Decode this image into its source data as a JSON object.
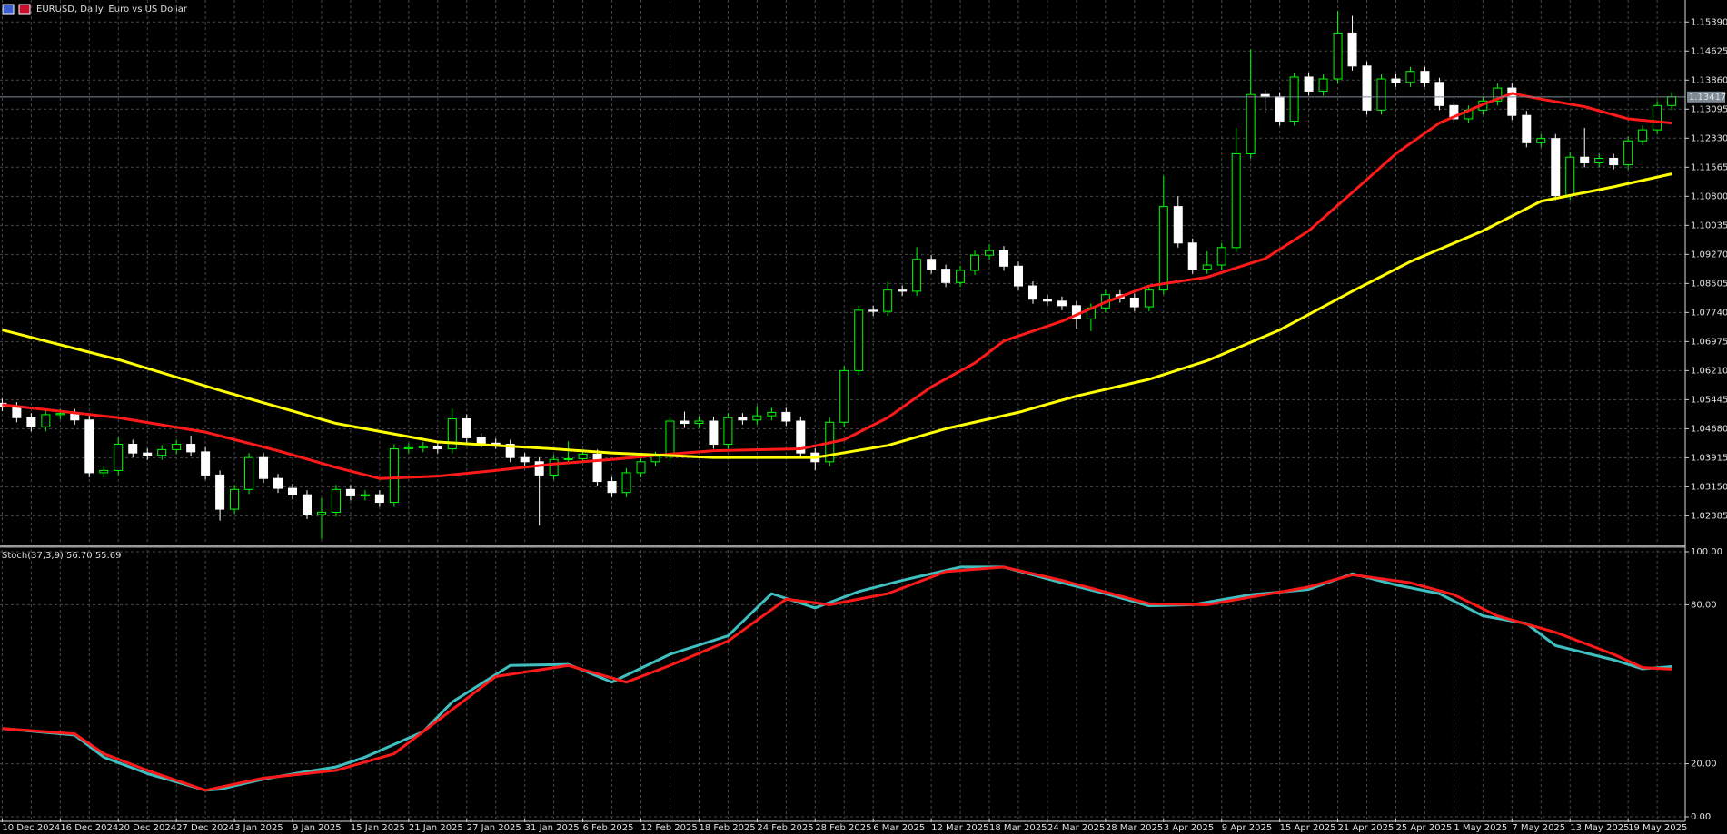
{
  "chart_data": [
    {
      "type": "candlestick",
      "title": "EURUSD, Daily: Euro vs US Dollar",
      "categories": [
        "10 Dec 2024",
        null,
        null,
        null,
        "16 Dec 2024",
        null,
        null,
        null,
        "20 Dec 2024",
        null,
        null,
        null,
        "27 Dec 2024",
        null,
        null,
        null,
        "3 Jan 2025",
        null,
        null,
        null,
        "9 Jan 2025",
        null,
        null,
        null,
        "15 Jan 2025",
        null,
        null,
        null,
        "21 Jan 2025",
        null,
        null,
        null,
        "27 Jan 2025",
        null,
        null,
        null,
        "31 Jan 2025",
        null,
        null,
        null,
        "6 Feb 2025",
        null,
        null,
        null,
        "12 Feb 2025",
        null,
        null,
        null,
        "18 Feb 2025",
        null,
        null,
        null,
        "24 Feb 2025",
        null,
        null,
        null,
        "28 Feb 2025",
        null,
        null,
        null,
        "6 Mar 2025",
        null,
        null,
        null,
        "12 Mar 2025",
        null,
        null,
        null,
        "18 Mar 2025",
        null,
        null,
        null,
        "24 Mar 2025",
        null,
        null,
        null,
        "28 Mar 2025",
        null,
        null,
        null,
        "3 Apr 2025",
        null,
        null,
        null,
        "9 Apr 2025",
        null,
        null,
        null,
        "15 Apr 2025",
        null,
        null,
        null,
        "21 Apr 2025",
        null,
        null,
        null,
        "25 Apr 2025",
        null,
        null,
        null,
        "1 May 2025",
        null,
        null,
        null,
        "7 May 2025",
        null,
        null,
        null,
        "13 May 2025",
        null,
        null,
        null,
        "19 May 2025",
        null,
        null,
        null
      ],
      "open": [
        1.0535,
        1.0526,
        1.0497,
        1.0473,
        1.0505,
        1.0508,
        1.0491,
        1.0352,
        1.0358,
        1.0427,
        1.0404,
        1.0398,
        1.0413,
        1.0427,
        1.0407,
        1.0346,
        1.0256,
        1.0308,
        1.0392,
        1.0337,
        1.0311,
        1.0294,
        1.0242,
        1.0248,
        1.0308,
        1.0291,
        1.0294,
        1.0274,
        1.0415,
        1.0418,
        1.0421,
        1.0415,
        1.0494,
        1.0444,
        1.043,
        1.0427,
        1.0392,
        1.0381,
        1.0346,
        1.0387,
        1.0389,
        1.0401,
        1.0329,
        1.03,
        1.0352,
        1.0381,
        1.0395,
        1.0488,
        1.0482,
        1.0488,
        1.0427,
        1.0497,
        1.0491,
        1.0502,
        1.0511,
        1.0488,
        1.0404,
        1.0381,
        1.0485,
        1.0621,
        1.078,
        1.0777,
        1.0833,
        1.083,
        1.0914,
        1.0888,
        1.0853,
        1.0885,
        1.0925,
        1.0937,
        1.0896,
        1.0844,
        1.0809,
        1.0804,
        1.0792,
        1.0757,
        1.0786,
        1.0821,
        1.0812,
        1.0789,
        1.0833,
        1.1053,
        1.0957,
        1.0888,
        1.0899,
        1.0945,
        1.1192,
        1.1348,
        1.1342,
        1.1278,
        1.1394,
        1.1357,
        1.1389,
        1.151,
        1.1423,
        1.1307,
        1.1389,
        1.138,
        1.1409,
        1.138,
        1.1319,
        1.1284,
        1.1307,
        1.1331,
        1.1365,
        1.1293,
        1.1221,
        1.1232,
        1.1082,
        1.1183,
        1.1168,
        1.118,
        1.1163,
        1.1226,
        1.1255,
        1.1319
      ],
      "high": [
        1.0547,
        1.0538,
        1.0509,
        1.0517,
        1.052,
        1.052,
        1.0503,
        1.037,
        1.0445,
        1.0439,
        1.0416,
        1.0425,
        1.0439,
        1.045,
        1.0419,
        1.0358,
        1.032,
        1.0404,
        1.0404,
        1.0349,
        1.0323,
        1.0306,
        1.0285,
        1.032,
        1.032,
        1.0306,
        1.0306,
        1.0427,
        1.043,
        1.0433,
        1.0433,
        1.0521,
        1.0506,
        1.0456,
        1.0442,
        1.0439,
        1.0404,
        1.0393,
        1.0399,
        1.0435,
        1.0413,
        1.0413,
        1.0341,
        1.0364,
        1.0393,
        1.0407,
        1.05,
        1.0513,
        1.05,
        1.05,
        1.0509,
        1.0509,
        1.0528,
        1.0523,
        1.0523,
        1.05,
        1.0416,
        1.0497,
        1.0633,
        1.0792,
        1.0792,
        1.0855,
        1.0845,
        1.0946,
        1.0926,
        1.09,
        1.0897,
        1.0937,
        1.0954,
        1.0949,
        1.0908,
        1.0856,
        1.0821,
        1.0816,
        1.0804,
        1.0798,
        1.0833,
        1.0833,
        1.0824,
        1.0845,
        1.1134,
        1.108,
        1.0969,
        1.0935,
        1.0957,
        1.126,
        1.1467,
        1.136,
        1.1354,
        1.1406,
        1.1406,
        1.1401,
        1.1568,
        1.1555,
        1.1435,
        1.1401,
        1.1401,
        1.1421,
        1.1421,
        1.1392,
        1.1331,
        1.1319,
        1.1343,
        1.1377,
        1.1377,
        1.1305,
        1.1244,
        1.1244,
        1.1195,
        1.126,
        1.1192,
        1.1192,
        1.1238,
        1.1267,
        1.1331,
        1.1354
      ],
      "low": [
        1.0514,
        1.0485,
        1.0461,
        1.0461,
        1.0493,
        1.0479,
        1.034,
        1.034,
        1.0346,
        1.0392,
        1.0386,
        1.0386,
        1.0401,
        1.0395,
        1.0334,
        1.0226,
        1.0244,
        1.0296,
        1.0325,
        1.0299,
        1.0282,
        1.023,
        1.0178,
        1.0236,
        1.0279,
        1.0279,
        1.0262,
        1.0262,
        1.0403,
        1.0406,
        1.0403,
        1.0403,
        1.0432,
        1.0418,
        1.0415,
        1.038,
        1.0369,
        1.0213,
        1.0334,
        1.0375,
        1.0377,
        1.0317,
        1.0288,
        1.0288,
        1.034,
        1.0369,
        1.0383,
        1.047,
        1.047,
        1.0415,
        1.0415,
        1.0479,
        1.0479,
        1.049,
        1.0476,
        1.0392,
        1.0359,
        1.0369,
        1.0473,
        1.0609,
        1.0765,
        1.0765,
        1.0818,
        1.0818,
        1.0876,
        1.0841,
        1.0841,
        1.0873,
        1.0913,
        1.0884,
        1.0832,
        1.0797,
        1.0792,
        1.078,
        1.0732,
        1.0725,
        1.0774,
        1.08,
        1.0777,
        1.0777,
        1.0821,
        1.0945,
        1.0876,
        1.0876,
        1.0887,
        1.0933,
        1.118,
        1.13,
        1.1266,
        1.1266,
        1.1345,
        1.1345,
        1.1377,
        1.1411,
        1.1295,
        1.1295,
        1.1368,
        1.1368,
        1.1368,
        1.1307,
        1.1272,
        1.1272,
        1.1295,
        1.1319,
        1.1281,
        1.1209,
        1.1209,
        1.107,
        1.107,
        1.1156,
        1.1156,
        1.1151,
        1.1151,
        1.1214,
        1.1243,
        1.1307
      ],
      "close": [
        1.0526,
        1.0497,
        1.0473,
        1.0505,
        1.0508,
        1.0491,
        1.0352,
        1.0358,
        1.0427,
        1.0404,
        1.0398,
        1.0413,
        1.0427,
        1.0407,
        1.0346,
        1.0256,
        1.0308,
        1.0392,
        1.0337,
        1.0311,
        1.0294,
        1.0242,
        1.0248,
        1.0308,
        1.0291,
        1.0294,
        1.0274,
        1.0415,
        1.0418,
        1.0421,
        1.0415,
        1.0494,
        1.0444,
        1.043,
        1.0427,
        1.0392,
        1.0381,
        1.0346,
        1.0387,
        1.0389,
        1.0401,
        1.0329,
        1.03,
        1.0352,
        1.0381,
        1.0395,
        1.0488,
        1.0482,
        1.0488,
        1.0427,
        1.0497,
        1.0491,
        1.0502,
        1.0511,
        1.0488,
        1.0404,
        1.0381,
        1.0485,
        1.0621,
        1.078,
        1.0777,
        1.0833,
        1.083,
        1.0914,
        1.0888,
        1.0853,
        1.0885,
        1.0925,
        1.0937,
        1.0896,
        1.0844,
        1.0809,
        1.0804,
        1.0792,
        1.0757,
        1.0786,
        1.0821,
        1.0812,
        1.0789,
        1.0833,
        1.1053,
        1.0957,
        1.0888,
        1.0899,
        1.0945,
        1.1192,
        1.1348,
        1.1342,
        1.1278,
        1.1394,
        1.1357,
        1.1389,
        1.151,
        1.1423,
        1.1307,
        1.1389,
        1.138,
        1.1409,
        1.138,
        1.1319,
        1.1284,
        1.1307,
        1.1331,
        1.1365,
        1.1293,
        1.1221,
        1.1232,
        1.1082,
        1.1183,
        1.1168,
        1.118,
        1.1163,
        1.1226,
        1.1255,
        1.1319,
        1.1342
      ],
      "up_color": "#00ff00",
      "down_color": "#ffffff",
      "lines": [
        {
          "color": "#ff1a1a",
          "x": [
            0,
            8,
            14,
            19,
            23,
            26,
            30,
            34,
            38,
            42,
            46,
            49,
            55,
            58,
            61,
            64,
            67,
            69,
            73,
            76,
            79,
            83,
            87,
            90,
            93,
            96,
            99,
            102,
            104,
            106,
            109,
            112,
            115
          ],
          "values": [
            1.0531,
            1.0497,
            1.0459,
            1.041,
            1.0366,
            1.0337,
            1.0343,
            1.0358,
            1.0375,
            1.0387,
            1.0401,
            1.041,
            1.0415,
            1.0439,
            1.0497,
            1.0578,
            1.0641,
            1.0699,
            1.0751,
            1.0801,
            1.0844,
            1.0867,
            1.0916,
            1.0989,
            1.109,
            1.1192,
            1.1273,
            1.1322,
            1.1351,
            1.1336,
            1.1316,
            1.1284,
            1.1273
          ]
        },
        {
          "color": "#ffff00",
          "x": [
            0,
            8,
            15,
            23,
            30,
            38,
            42,
            49,
            56,
            61,
            65,
            70,
            74,
            79,
            83,
            88,
            93,
            97,
            102,
            106,
            111,
            115
          ],
          "values": [
            1.0728,
            1.065,
            1.0569,
            1.0482,
            1.0433,
            1.0415,
            1.0404,
            1.0392,
            1.0392,
            1.0424,
            1.0468,
            1.0511,
            1.0554,
            1.0598,
            1.0647,
            1.0728,
            1.083,
            1.0908,
            1.0989,
            1.1067,
            1.1105,
            1.1139
          ]
        }
      ],
      "last_price": 1.13417,
      "ylim": [
        1.0163,
        1.1597
      ],
      "yticks": [
        1.02385,
        {
          "value": 1.0315,
          "label": "1.03150"
        },
        1.03915,
        {
          "value": 1.0468,
          "label": "1.04680"
        },
        1.05445,
        {
          "value": 1.0621,
          "label": "1.06210"
        },
        1.06975,
        {
          "value": 1.0774,
          "label": "1.07740"
        },
        1.08505,
        {
          "value": 1.0927,
          "label": "1.09270"
        },
        1.10035,
        {
          "value": 1.108,
          "label": "1.10800"
        },
        1.11565,
        {
          "value": 1.1233,
          "label": "1.12330"
        },
        1.13095,
        {
          "value": 1.1386,
          "label": "1.13860"
        },
        1.14625,
        {
          "value": 1.1539,
          "label": "1.15390"
        }
      ],
      "grid": true
    },
    {
      "type": "line",
      "label": "Stoch(37,3,9) 56.70 55.69",
      "series": [
        {
          "color": "#3fbfbf",
          "x": [
            0,
            5,
            7,
            10,
            14,
            15,
            18,
            21,
            23,
            25,
            29,
            31,
            35,
            39,
            42,
            46,
            50,
            53,
            56,
            59,
            62,
            66,
            69,
            73,
            76,
            79,
            82,
            86,
            90,
            93,
            96,
            99,
            102,
            105,
            107,
            111,
            113,
            115
          ],
          "values": [
            33.3,
            30.8,
            22.5,
            16.3,
            10.0,
            10.4,
            14.2,
            17.1,
            18.8,
            22.5,
            32.1,
            43.3,
            57.1,
            57.5,
            50.8,
            61.3,
            68.3,
            84.2,
            78.8,
            85.0,
            89.2,
            94.2,
            94.2,
            88.3,
            84.2,
            79.6,
            80.0,
            83.8,
            85.8,
            91.7,
            87.5,
            84.2,
            75.8,
            72.9,
            64.6,
            59.2,
            55.8,
            56.7
          ]
        },
        {
          "color": "#ff1a1a",
          "x": [
            0,
            5,
            7,
            10,
            14,
            18,
            23,
            27,
            30,
            34,
            39,
            43,
            46,
            50,
            54,
            57,
            61,
            65,
            69,
            73,
            79,
            83,
            90,
            93,
            97,
            100,
            103,
            107,
            111,
            113,
            115
          ],
          "values": [
            33.3,
            31.3,
            23.8,
            17.5,
            10.0,
            14.6,
            17.5,
            23.8,
            36.3,
            52.9,
            57.1,
            50.8,
            57.1,
            66.3,
            82.1,
            80.0,
            84.2,
            92.5,
            94.2,
            89.2,
            80.4,
            80.0,
            86.7,
            91.3,
            88.3,
            83.8,
            75.8,
            69.6,
            61.3,
            56.3,
            55.69
          ]
        }
      ],
      "ylim": [
        0,
        100
      ],
      "yticks": [
        {
          "value": 0,
          "label": "0.00"
        },
        {
          "value": 20,
          "label": "20.00"
        },
        {
          "value": 80,
          "label": "80.00"
        },
        {
          "value": 100,
          "label": "100.00"
        }
      ],
      "grid": true
    }
  ]
}
